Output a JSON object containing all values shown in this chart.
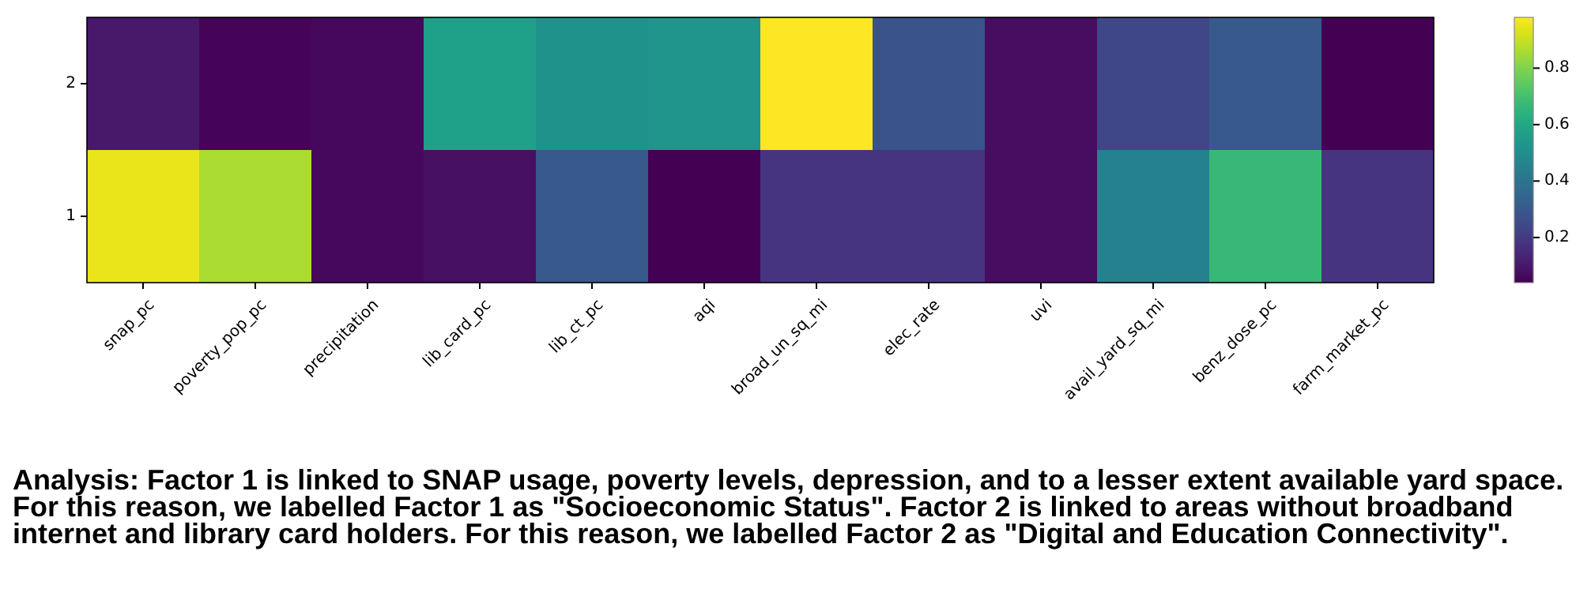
{
  "chart_data": {
    "type": "heatmap",
    "categories": [
      "snap_pc",
      "poverty_pop_pc",
      "precipitation",
      "lib_card_pc",
      "lib_ct_pc",
      "aqi",
      "broad_un_sq_mi",
      "elec_rate",
      "uvi",
      "avail_yard_sq_mi",
      "benz_dose_pc",
      "farm_market_pc"
    ],
    "y_categories": [
      "2",
      "1"
    ],
    "cells": [
      [
        0.1,
        0.05,
        0.06,
        0.57,
        0.52,
        0.53,
        0.98,
        0.28,
        0.07,
        0.24,
        0.3,
        0.04
      ],
      [
        0.95,
        0.86,
        0.06,
        0.08,
        0.3,
        0.04,
        0.18,
        0.18,
        0.07,
        0.45,
        0.67,
        0.18
      ]
    ],
    "clim": [
      0.04,
      0.98
    ],
    "cticks": [
      0.2,
      0.4,
      0.6,
      0.8
    ],
    "annotations": [
      "Analysis: Factor 1 is linked to SNAP usage, poverty levels, depression, and to a lesser extent available yard space. For this reason, we labelled Factor 1 as \"Socioeconomic Status\". Factor 2 is linked to areas without broadband internet and library card holders. For this reason, we labelled Factor 2 as \"Digital and Education Connectivity\"."
    ]
  }
}
